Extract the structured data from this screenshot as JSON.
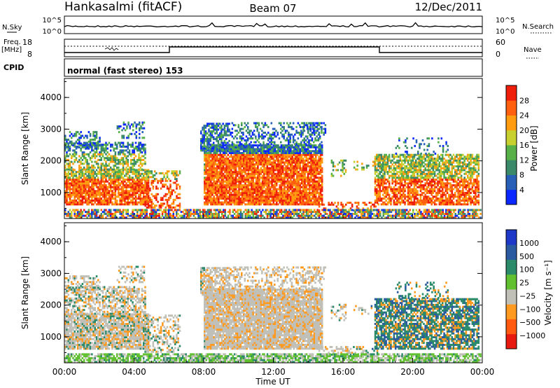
{
  "header": {
    "station": "Hankasalmi (fitACF)",
    "beam": "Beam 07",
    "date": "12/Dec/2011"
  },
  "strip_labels": {
    "nsky": "N.Sky",
    "nsearch": "N.Search",
    "freq": "Freq.",
    "mhz": "[MHz]",
    "nave": "Nave",
    "cpid": "CPID",
    "ticks_n_top": "10^5",
    "ticks_n_bottom": "10^0",
    "freq_top": "18",
    "freq_bottom": "8",
    "nave_top": "60",
    "nave_bottom": "0"
  },
  "cpid_text": "normal (fast stereo) 153",
  "colors": {
    "power": [
      "#0a28ff",
      "#2860b8",
      "#3a8a6a",
      "#58b048",
      "#c8d030",
      "#ff9c10",
      "#ff6010",
      "#ee1e0a"
    ],
    "velocity": [
      "#1e38c8",
      "#2a5aa0",
      "#2a8a6a",
      "#60c030",
      "#c0c0b8",
      "#ff9a20",
      "#ff5a10",
      "#e81a10"
    ]
  },
  "chart_data": [
    {
      "type": "heatmap",
      "panel": "power",
      "ylabel": "Slant Range [km]",
      "ylim": [
        180,
        4600
      ],
      "yticks": [
        "1000",
        "2000",
        "3000",
        "4000"
      ],
      "xlim": [
        0,
        24
      ],
      "colorbar_label": "Power [dB]",
      "colorbar_ticks": [
        "4",
        "8",
        "12",
        "16",
        "20",
        "24",
        "28"
      ],
      "colorbar_range": [
        0,
        32
      ]
    },
    {
      "type": "heatmap",
      "panel": "velocity",
      "ylabel": "Slant Range [km]",
      "ylim": [
        180,
        4600
      ],
      "yticks": [
        "1000",
        "2000",
        "3000",
        "4000"
      ],
      "xlim": [
        0,
        24
      ],
      "colorbar_label": "Velocity [m s⁻¹]",
      "colorbar_ticks": [
        "1000",
        "500",
        "100",
        "25",
        "−25",
        "−100",
        "−500",
        "−1000"
      ]
    }
  ],
  "xaxis": {
    "label": "Time UT",
    "ticks": [
      "00:00",
      "04:00",
      "08:00",
      "12:00",
      "16:00",
      "20:00",
      "00:00"
    ]
  }
}
